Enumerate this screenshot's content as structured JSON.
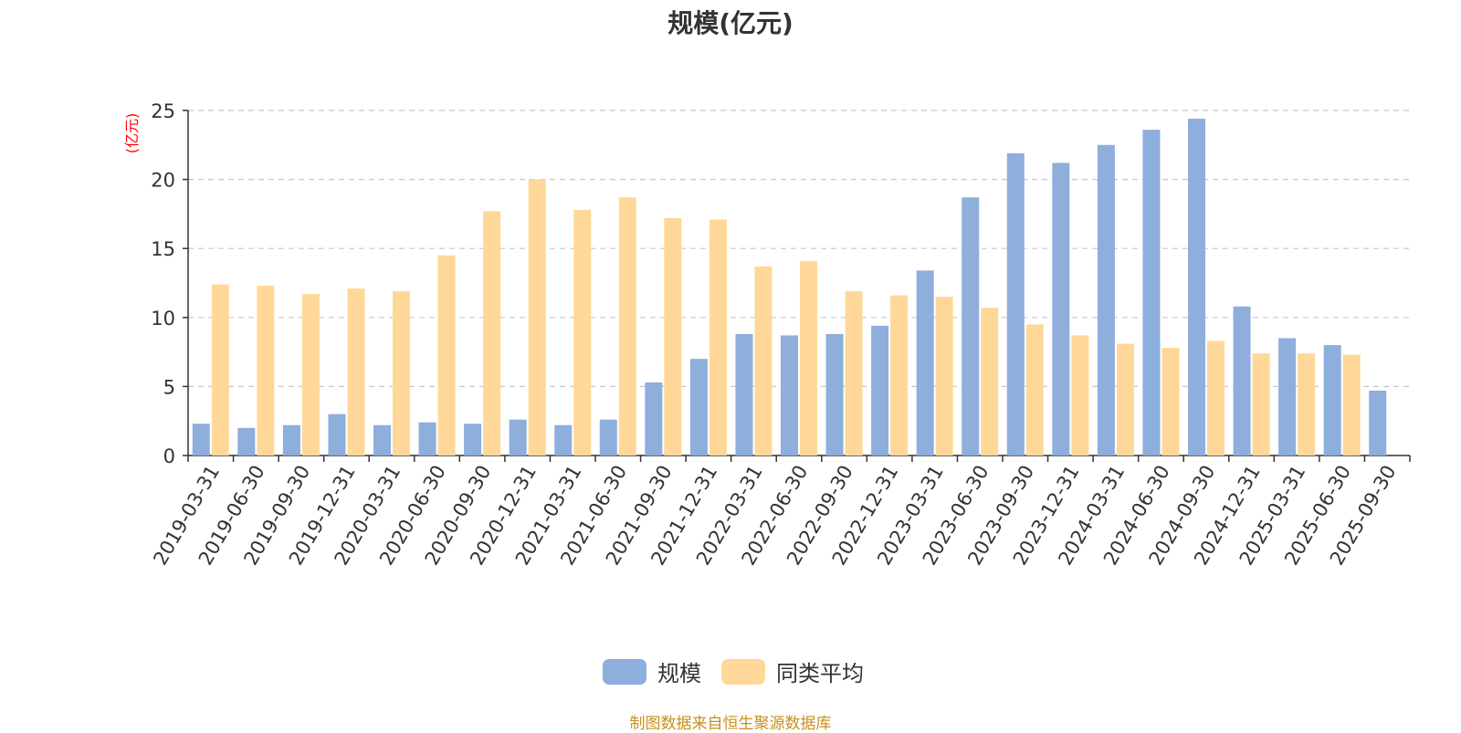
{
  "title": "规模(亿元)",
  "source_text": "制图数据来自恒生聚源数据库",
  "colors": {
    "scale": "#8EAEDC",
    "avg": "#FFD899",
    "unit": "#FF0000",
    "source": "#C8901E",
    "grid": "#C8C8C8",
    "axis": "#333333",
    "text": "#333333"
  },
  "chart_data": {
    "type": "bar",
    "title": "规模(亿元)",
    "ylabel": "(亿元)",
    "xlabel": "",
    "ylim": [
      0,
      25
    ],
    "yticks": [
      0,
      5,
      10,
      15,
      20,
      25
    ],
    "grid": true,
    "legend_position": "bottom",
    "categories": [
      "2019-03-31",
      "2019-06-30",
      "2019-09-30",
      "2019-12-31",
      "2020-03-31",
      "2020-06-30",
      "2020-09-30",
      "2020-12-31",
      "2021-03-31",
      "2021-06-30",
      "2021-09-30",
      "2021-12-31",
      "2022-03-31",
      "2022-06-30",
      "2022-09-30",
      "2022-12-31",
      "2023-03-31",
      "2023-06-30",
      "2023-09-30",
      "2023-12-31",
      "2024-03-31",
      "2024-06-30",
      "2024-09-30",
      "2024-12-31",
      "2025-03-31",
      "2025-06-30",
      "2025-09-30"
    ],
    "series": [
      {
        "name": "规模",
        "values": [
          2.3,
          2.0,
          2.2,
          3.0,
          2.2,
          2.4,
          2.3,
          2.6,
          2.2,
          2.6,
          5.3,
          7.0,
          8.8,
          8.7,
          8.8,
          9.4,
          13.4,
          18.7,
          21.9,
          21.2,
          22.5,
          23.6,
          24.4,
          10.8,
          8.5,
          8.0,
          4.7
        ]
      },
      {
        "name": "同类平均",
        "values": [
          12.4,
          12.3,
          11.7,
          12.1,
          11.9,
          14.5,
          17.7,
          20.0,
          17.8,
          18.7,
          17.2,
          17.1,
          13.7,
          14.1,
          11.9,
          11.6,
          11.5,
          10.7,
          9.5,
          8.7,
          8.1,
          7.8,
          8.3,
          7.4,
          7.4,
          7.3,
          null
        ]
      }
    ]
  }
}
